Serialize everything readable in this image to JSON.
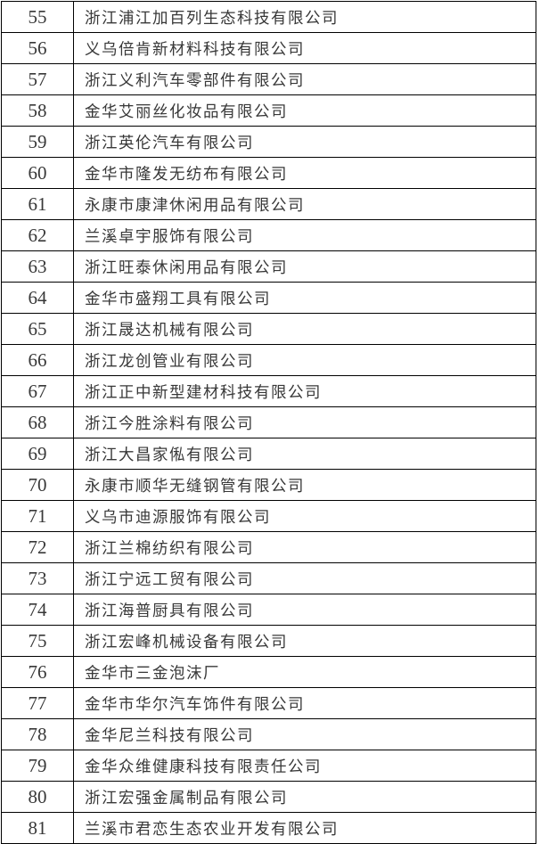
{
  "table": {
    "description": "numbered-company-list",
    "rows": [
      {
        "no": "55",
        "name": "浙江浦江加百列生态科技有限公司"
      },
      {
        "no": "56",
        "name": "义乌倍肯新材料科技有限公司"
      },
      {
        "no": "57",
        "name": "浙江义利汽车零部件有限公司"
      },
      {
        "no": "58",
        "name": "金华艾丽丝化妆品有限公司"
      },
      {
        "no": "59",
        "name": "浙江英伦汽车有限公司"
      },
      {
        "no": "60",
        "name": "金华市隆发无纺布有限公司"
      },
      {
        "no": "61",
        "name": "永康市康津休闲用品有限公司"
      },
      {
        "no": "62",
        "name": "兰溪卓宇服饰有限公司"
      },
      {
        "no": "63",
        "name": "浙江旺泰休闲用品有限公司"
      },
      {
        "no": "64",
        "name": "金华市盛翔工具有限公司"
      },
      {
        "no": "65",
        "name": "浙江晟达机械有限公司"
      },
      {
        "no": "66",
        "name": "浙江龙创管业有限公司"
      },
      {
        "no": "67",
        "name": "浙江正中新型建材科技有限公司"
      },
      {
        "no": "68",
        "name": "浙江今胜涂料有限公司"
      },
      {
        "no": "69",
        "name": "浙江大昌家俬有限公司"
      },
      {
        "no": "70",
        "name": "永康市顺华无缝钢管有限公司"
      },
      {
        "no": "71",
        "name": "义乌市迪源服饰有限公司"
      },
      {
        "no": "72",
        "name": "浙江兰棉纺织有限公司"
      },
      {
        "no": "73",
        "name": "浙江宁远工贸有限公司"
      },
      {
        "no": "74",
        "name": "浙江海普厨具有限公司"
      },
      {
        "no": "75",
        "name": "浙江宏峰机械设备有限公司"
      },
      {
        "no": "76",
        "name": "金华市三金泡沫厂"
      },
      {
        "no": "77",
        "name": "金华市华尔汽车饰件有限公司"
      },
      {
        "no": "78",
        "name": "金华尼兰科技有限公司"
      },
      {
        "no": "79",
        "name": "金华众维健康科技有限责任公司"
      },
      {
        "no": "80",
        "name": "浙江宏强金属制品有限公司"
      },
      {
        "no": "81",
        "name": "兰溪市君恋生态农业开发有限公司"
      }
    ]
  },
  "colors": {
    "border": "#000000",
    "text": "#383838",
    "background": "#ffffff"
  }
}
